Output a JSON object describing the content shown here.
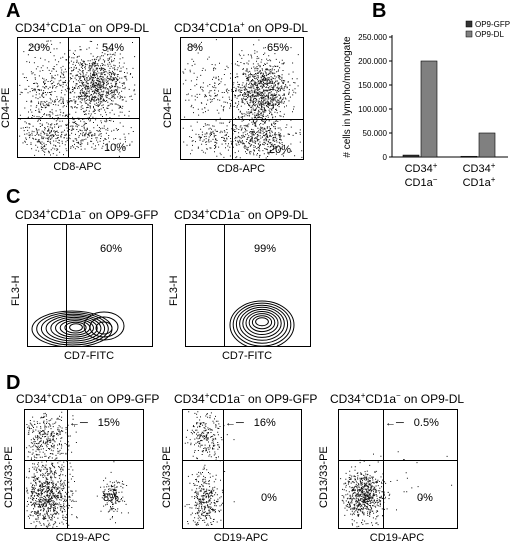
{
  "panels": {
    "A": {
      "letter": "A",
      "plots": [
        {
          "title_pre": "CD34",
          "title_sup1": "+",
          "title_mid": "CD1a",
          "title_sup2": "−",
          "title_post": " on OP9-DL",
          "q_ul": "20%",
          "q_ur": "54%",
          "q_lr": "10%",
          "xlabel": "CD8-APC",
          "ylabel": "CD4-PE"
        },
        {
          "title_pre": "CD34",
          "title_sup1": "+",
          "title_mid": "CD1a",
          "title_sup2": "+",
          "title_post": " on OP9-DL",
          "q_ul": "8%",
          "q_ur": "65%",
          "q_lr": "20%",
          "xlabel": "CD8-APC",
          "ylabel": "CD4-PE"
        }
      ]
    },
    "B": {
      "letter": "B",
      "chart_data": {
        "type": "bar",
        "categories": [
          "CD34+ CD1a−",
          "CD34+ CD1a+"
        ],
        "category_labels": [
          {
            "line1_base": "CD34",
            "line1_sup": "+",
            "line2_base": "CD1a",
            "line2_sup": "−"
          },
          {
            "line1_base": "CD34",
            "line1_sup": "+",
            "line2_base": "CD1a",
            "line2_sup": "+"
          }
        ],
        "series": [
          {
            "name": "OP9-GFP",
            "values": [
              4000,
              1500
            ],
            "color": "#333333"
          },
          {
            "name": "OP9-DL",
            "values": [
              200000,
              50000
            ],
            "color": "#808080"
          }
        ],
        "ylabel": "# cells in lympho/monogate",
        "ylim": [
          0,
          250000
        ],
        "yticks": [
          0,
          50000,
          100000,
          150000,
          200000,
          250000
        ],
        "ytick_labels": [
          "0",
          "50.000",
          "100.000",
          "150.000",
          "200.000",
          "250.000"
        ],
        "legend_position": "top-right",
        "grid": false
      }
    },
    "C": {
      "letter": "C",
      "plots": [
        {
          "title_pre": "CD34",
          "title_sup1": "+",
          "title_mid": "CD1a",
          "title_sup2": "−",
          "title_post": " on OP9-GFP",
          "q_ur": "60%",
          "xlabel": "CD7-FITC",
          "ylabel": "FL3-H"
        },
        {
          "title_pre": "CD34",
          "title_sup1": "+",
          "title_mid": "CD1a",
          "title_sup2": "−",
          "title_post": " on OP9-DL",
          "q_ur": "99%",
          "xlabel": "CD7-FITC",
          "ylabel": "FL3-H"
        }
      ]
    },
    "D": {
      "letter": "D",
      "plots": [
        {
          "title_pre": "CD34",
          "title_sup1": "+",
          "title_mid": "CD1a",
          "title_sup2": "−",
          "title_post": " on OP9-GFP",
          "arrow_pct": "15%",
          "q_lr": "8%",
          "xlabel": "CD19-APC",
          "ylabel": "CD13/33-PE"
        },
        {
          "title_pre": "CD34",
          "title_sup1": "+",
          "title_mid": "CD1a",
          "title_sup2": "−",
          "title_post": " on OP9-GFP",
          "arrow_pct": "16%",
          "q_lr": "0%",
          "xlabel": "CD19-APC",
          "ylabel": "CD13/33-PE"
        },
        {
          "title_pre": "CD34",
          "title_sup1": "+",
          "title_mid": "CD1a",
          "title_sup2": "−",
          "title_post": " on OP9-DL",
          "arrow_pct": "0.5%",
          "q_lr": "0%",
          "xlabel": "CD19-APC",
          "ylabel": "CD13/33-PE"
        }
      ]
    }
  }
}
